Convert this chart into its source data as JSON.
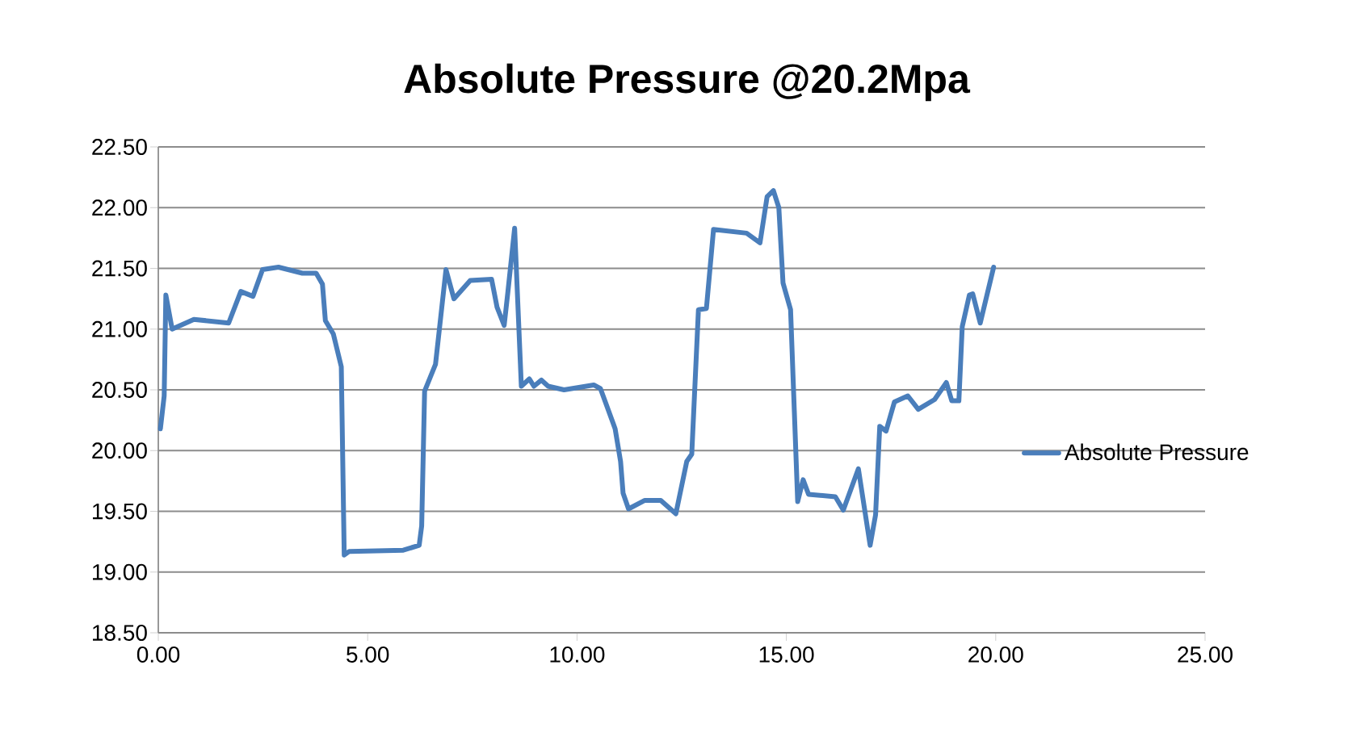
{
  "chart_data": {
    "type": "line",
    "title": "Absolute Pressure @20.2Mpa",
    "series": [
      {
        "name": "Absolute Pressure",
        "color": "#4a7ebb",
        "x": [
          0.05,
          0.14,
          0.18,
          0.33,
          0.85,
          1.68,
          1.97,
          2.26,
          2.49,
          2.87,
          3.44,
          3.77,
          3.92,
          3.99,
          4.18,
          4.37,
          4.44,
          4.56,
          5.85,
          6.23,
          6.29,
          6.36,
          6.62,
          6.87,
          7.06,
          7.45,
          7.96,
          8.09,
          8.26,
          8.35,
          8.51,
          8.67,
          8.86,
          8.97,
          9.15,
          9.31,
          9.69,
          10.4,
          10.56,
          10.91,
          11.04,
          11.1,
          11.23,
          11.62,
          12.0,
          12.36,
          12.62,
          12.74,
          12.9,
          13.09,
          13.26,
          14.05,
          14.37,
          14.54,
          14.69,
          14.82,
          14.92,
          15.1,
          15.27,
          15.4,
          15.53,
          16.17,
          16.36,
          16.72,
          17.0,
          17.13,
          17.23,
          17.38,
          17.58,
          17.9,
          18.15,
          18.54,
          18.82,
          18.95,
          19.12,
          19.2,
          19.37,
          19.45,
          19.63,
          19.95
        ],
        "values": [
          20.18,
          20.45,
          21.28,
          21.0,
          21.08,
          21.05,
          21.31,
          21.27,
          21.49,
          21.51,
          21.46,
          21.46,
          21.37,
          21.07,
          20.96,
          20.69,
          19.14,
          19.17,
          19.18,
          19.22,
          19.38,
          20.49,
          20.71,
          21.49,
          21.25,
          21.4,
          21.41,
          21.18,
          21.03,
          21.31,
          21.83,
          20.53,
          20.59,
          20.53,
          20.58,
          20.53,
          20.5,
          20.54,
          20.51,
          20.18,
          19.91,
          19.65,
          19.52,
          19.59,
          19.59,
          19.48,
          19.91,
          19.97,
          21.16,
          21.17,
          21.82,
          21.79,
          21.71,
          22.09,
          22.14,
          22.0,
          21.38,
          21.16,
          19.58,
          19.76,
          19.64,
          19.62,
          19.51,
          19.85,
          19.22,
          19.47,
          20.2,
          20.16,
          20.4,
          20.45,
          20.34,
          20.42,
          20.56,
          20.41,
          20.41,
          21.02,
          21.28,
          21.29,
          21.05,
          21.51
        ]
      }
    ],
    "xlim": [
      0,
      25
    ],
    "ylim": [
      18.5,
      22.5
    ],
    "xticks": [
      {
        "value": 0,
        "label": "0.00"
      },
      {
        "value": 5,
        "label": "5.00"
      },
      {
        "value": 10,
        "label": "10.00"
      },
      {
        "value": 15,
        "label": "15.00"
      },
      {
        "value": 20,
        "label": "20.00"
      },
      {
        "value": 25,
        "label": "25.00"
      }
    ],
    "yticks": [
      {
        "value": 18.5,
        "label": "18.50"
      },
      {
        "value": 19,
        "label": "19.00"
      },
      {
        "value": 19.5,
        "label": "19.50"
      },
      {
        "value": 20,
        "label": "20.00"
      },
      {
        "value": 20.5,
        "label": "20.50"
      },
      {
        "value": 21,
        "label": "21.00"
      },
      {
        "value": 21.5,
        "label": "21.50"
      },
      {
        "value": 22,
        "label": "22.00"
      },
      {
        "value": 22.5,
        "label": "22.50"
      }
    ],
    "grid": "y",
    "legend": "right",
    "marker": "none",
    "line_style": "solid"
  }
}
